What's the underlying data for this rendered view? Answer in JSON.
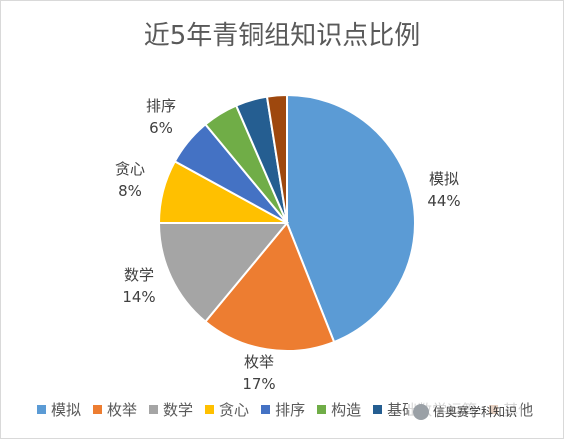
{
  "chart_data": {
    "type": "pie",
    "title": "近5年青铜组知识点比例",
    "start_angle_deg": 0,
    "direction": "clockwise",
    "slices": [
      {
        "name": "模拟",
        "value": 44,
        "label": "44%",
        "color": "#5B9BD5"
      },
      {
        "name": "枚举",
        "value": 17,
        "label": "17%",
        "color": "#ED7D31"
      },
      {
        "name": "数学",
        "value": 14,
        "label": "14%",
        "color": "#A5A5A5"
      },
      {
        "name": "贪心",
        "value": 8,
        "label": "8%",
        "color": "#FFC000"
      },
      {
        "name": "排序",
        "value": 6,
        "label": "6%",
        "color": "#4472C4"
      },
      {
        "name": "构造",
        "value": 4.5,
        "label": "",
        "color": "#70AD47"
      },
      {
        "name": "基础数学运算",
        "value": 4,
        "label": "",
        "color": "#255E91"
      },
      {
        "name": "其他",
        "value": 2.5,
        "label": "",
        "color": "#9E480E"
      }
    ],
    "legend": {
      "placement": "bottom",
      "entries": [
        "模拟",
        "枚举",
        "数学",
        "贪心",
        "排序",
        "构造",
        "基础数学运算",
        "其他"
      ]
    }
  },
  "watermark": {
    "text": "信奥赛学科知识"
  }
}
